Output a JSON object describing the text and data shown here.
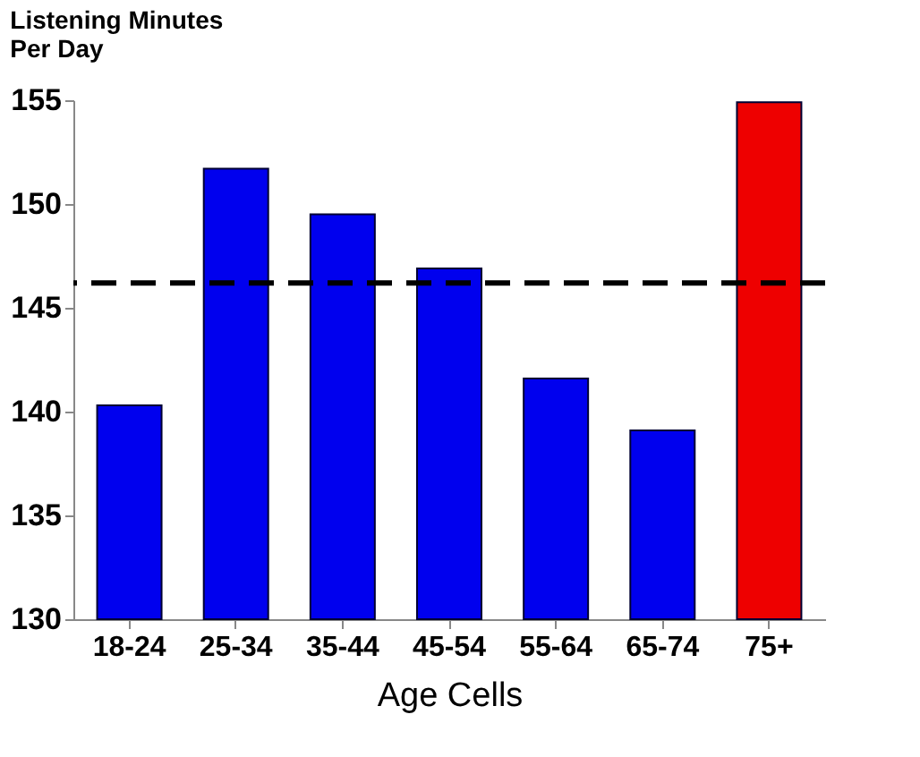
{
  "chart_data": {
    "type": "bar",
    "ylabel": "Listening Minutes\nPer Day",
    "xlabel": "Age Cells",
    "categories": [
      "18-24",
      "25-34",
      "35-44",
      "45-54",
      "55-64",
      "65-74",
      "75+"
    ],
    "values": [
      140.3,
      151.7,
      149.5,
      146.9,
      141.6,
      139.1,
      154.9
    ],
    "colors": [
      "#0000ee",
      "#0000ee",
      "#0000ee",
      "#0000ee",
      "#0000ee",
      "#0000ee",
      "#ee0000"
    ],
    "ylim": [
      130,
      155
    ],
    "yticks": [
      130,
      135,
      140,
      145,
      150,
      155
    ],
    "grid": false,
    "ref_lines": [
      {
        "axis": "y",
        "value": 146.2,
        "color": "#000000",
        "line_style": "dashed"
      }
    ]
  }
}
